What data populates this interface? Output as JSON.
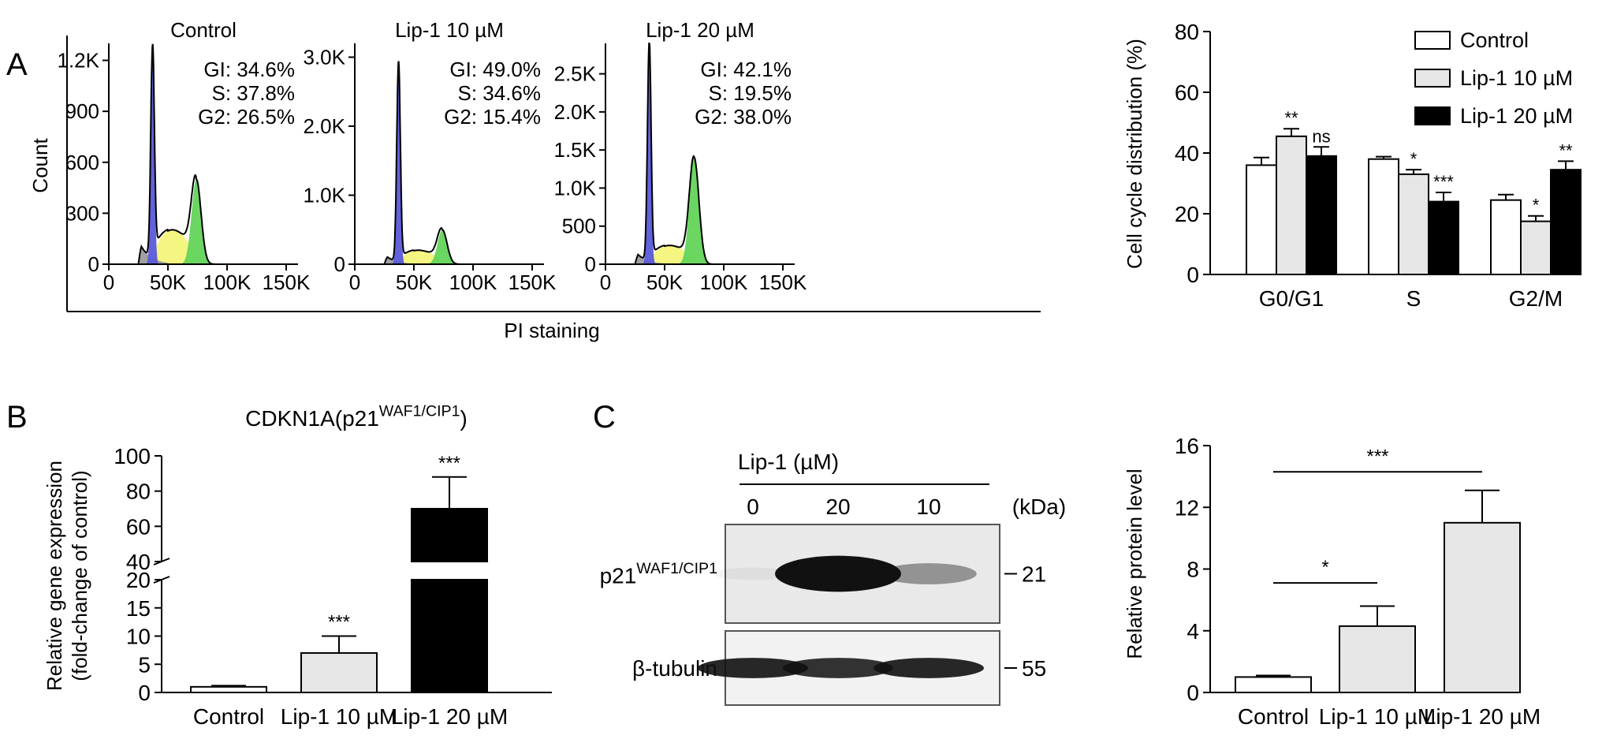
{
  "colors": {
    "black": "#000000",
    "white": "#ffffff",
    "light_gray_bar": "#e6e6e6",
    "g1_peak": "#5a5ad9",
    "s_phase": "#f4f47a",
    "g2_peak": "#63d45a",
    "debris": "#9b9b9b"
  },
  "panel_letters": {
    "a": "A",
    "b": "B",
    "c": "C"
  },
  "chart_data": [
    {
      "id": "flow-histograms",
      "type": "area",
      "ylabel": "Count",
      "xlabel": "PI staining",
      "histograms": [
        {
          "title": "Control",
          "stats": [
            "GI: 34.6%",
            "S: 37.8%",
            "G2: 26.5%"
          ],
          "xlim": [
            0,
            160000
          ],
          "ylim": [
            0,
            1300
          ],
          "yticks": [
            0,
            300,
            600,
            900,
            1200
          ],
          "ytick_labels": [
            "0",
            "300",
            "600",
            "900",
            "1.2K"
          ],
          "xticks": [
            0,
            50000,
            100000,
            150000
          ],
          "xtick_labels": [
            "0",
            "50K",
            "100K",
            "150K"
          ],
          "peak_g1": {
            "x": 37000,
            "height": 1250
          },
          "peak_g2": {
            "x": 74000,
            "height": 500
          },
          "s_level": 230
        },
        {
          "title": "Lip-1 10 µM",
          "stats": [
            "GI: 49.0%",
            "S: 34.6%",
            "G2: 15.4%"
          ],
          "xlim": [
            0,
            160000
          ],
          "ylim": [
            0,
            3200
          ],
          "yticks": [
            0,
            1000,
            2000,
            3000
          ],
          "ytick_labels": [
            "0",
            "1.0K",
            "2.0K",
            "3.0K"
          ],
          "xticks": [
            0,
            50000,
            100000,
            150000
          ],
          "xtick_labels": [
            "0",
            "50K",
            "100K",
            "150K"
          ],
          "peak_g1": {
            "x": 37000,
            "height": 2900
          },
          "peak_g2": {
            "x": 74000,
            "height": 500
          },
          "s_level": 230
        },
        {
          "title": "Lip-1 20 µM",
          "stats": [
            "GI: 42.1%",
            "S: 19.5%",
            "G2: 38.0%"
          ],
          "xlim": [
            0,
            160000
          ],
          "ylim": [
            0,
            2900
          ],
          "yticks": [
            0,
            500,
            1000,
            1500,
            2000,
            2500
          ],
          "ytick_labels": [
            "0",
            "500",
            "1.0K",
            "1.5K",
            "2.0K",
            "2.5K"
          ],
          "xticks": [
            0,
            50000,
            100000,
            150000
          ],
          "xtick_labels": [
            "0",
            "50K",
            "100K",
            "150K"
          ],
          "peak_g1": {
            "x": 37000,
            "height": 2900
          },
          "peak_g2": {
            "x": 75000,
            "height": 1400
          },
          "s_level": 280
        }
      ]
    },
    {
      "id": "cell-cycle-bar",
      "type": "bar",
      "ylabel": "Cell cycle distribution (%)",
      "ylim": [
        0,
        80
      ],
      "yticks": [
        0,
        20,
        40,
        60,
        80
      ],
      "categories": [
        "G0/G1",
        "S",
        "G2/M"
      ],
      "legend_position": "top-right",
      "series": [
        {
          "name": "Control",
          "fill": "#ffffff",
          "values": [
            36,
            38,
            24.5
          ],
          "errors": [
            2.5,
            0.8,
            1.8
          ],
          "sig": [
            "",
            "",
            ""
          ]
        },
        {
          "name": "Lip-1 10 µM",
          "fill": "#e6e6e6",
          "values": [
            45.5,
            33,
            17.5
          ],
          "errors": [
            2.5,
            1.5,
            1.8
          ],
          "sig": [
            "**",
            "*",
            "*"
          ]
        },
        {
          "name": "Lip-1 20 µM",
          "fill": "#000000",
          "values": [
            39,
            24,
            34.5
          ],
          "errors": [
            3,
            3,
            2.8
          ],
          "sig": [
            "ns",
            "***",
            "**"
          ]
        }
      ]
    },
    {
      "id": "cdkn1a-bar",
      "type": "bar",
      "title": "CDKN1A(p21",
      "title_superscript": "WAF1/CIP1",
      "title_close": ")",
      "ylabel_line1": "Relative gene expression",
      "ylabel_line2": "(fold-change of control)",
      "categories": [
        "Control",
        "Lip-1 10 µM",
        "Lip-1 20 µM"
      ],
      "values": [
        1,
        7,
        70
      ],
      "errors": [
        0.2,
        3,
        18
      ],
      "fills": [
        "#ffffff",
        "#e6e6e6",
        "#000000"
      ],
      "significance": [
        "",
        "***",
        "***"
      ],
      "axis_break": {
        "lower": [
          0,
          20
        ],
        "upper": [
          40,
          100
        ]
      },
      "yticks_lower": [
        0,
        5,
        10,
        15,
        20
      ],
      "yticks_upper": [
        40,
        60,
        80,
        100
      ]
    },
    {
      "id": "western-blot",
      "type": "table",
      "header": "Lip-1 (µM)",
      "lanes": [
        "0",
        "20",
        "10"
      ],
      "unit_label": "(kDa)",
      "rows": [
        {
          "label": "p21",
          "label_superscript": "WAF1/CIP1",
          "kda": "21",
          "band_intensity": [
            0.05,
            1.0,
            0.4
          ]
        },
        {
          "label": "β-tubulin",
          "label_superscript": "",
          "kda": "55",
          "band_intensity": [
            0.9,
            0.85,
            0.9
          ]
        }
      ]
    },
    {
      "id": "protein-level-bar",
      "type": "bar",
      "ylabel": "Relative protein level",
      "ylim": [
        0,
        16
      ],
      "yticks": [
        0,
        4,
        8,
        12,
        16
      ],
      "categories": [
        "Control",
        "Lip-1 10 µM",
        "Lip-1 20 µM"
      ],
      "values": [
        1,
        4.3,
        11
      ],
      "errors": [
        0.1,
        1.3,
        2.1
      ],
      "fills": [
        "#ffffff",
        "#e6e6e6",
        "#e6e6e6"
      ],
      "comparisons": [
        {
          "from": 0,
          "to": 1,
          "label": "*",
          "y": 7.1
        },
        {
          "from": 0,
          "to": 2,
          "label": "***",
          "y": 14.3
        }
      ]
    }
  ]
}
